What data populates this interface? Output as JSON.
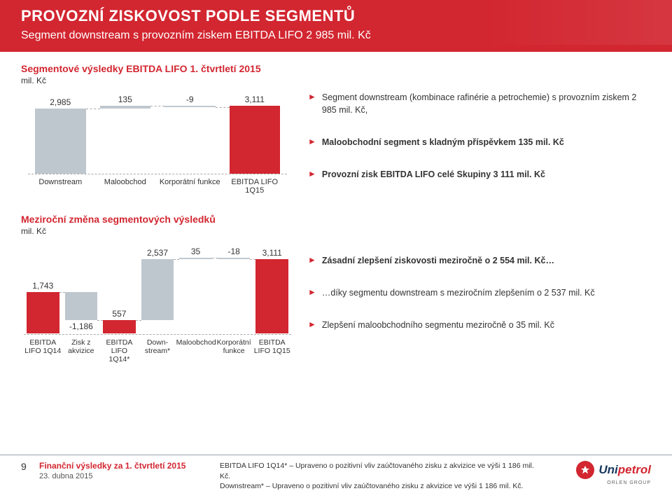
{
  "header": {
    "title": "PROVOZNÍ ZISKOVOST PODLE SEGMENTŮ",
    "subtitle": "Segment downstream s provozním ziskem EBITDA LIFO 2 985 mil. Kč"
  },
  "section1": {
    "title": "Segmentové výsledky EBITDA LIFO  1. čtvrtletí 2015",
    "unit": "mil. Kč",
    "chart": {
      "type": "waterfall",
      "categories": [
        "Downstream",
        "Maloobchod",
        "Korporátní funkce",
        "EBITDA LIFO 1Q15"
      ],
      "values": [
        2985,
        135,
        -9,
        3111
      ],
      "labels": [
        "2,985",
        "135",
        "-9",
        "3,111"
      ],
      "bar_colors": [
        "#bfc7ce",
        "#bfc7ce",
        "#bfc7ce",
        "#d22630"
      ],
      "bg": "#ffffff",
      "axis_color": "#aaaaaa",
      "label_fontsize": 12,
      "cat_fontsize": 11,
      "ylim": [
        0,
        3200
      ]
    },
    "bullets": [
      "Segment downstream (kombinace rafinérie a petrochemie) s provozním ziskem 2 985 mil. Kč,",
      "Maloobchodní segment s kladným příspěvkem 135 mil. Kč",
      "Provozní zisk EBITDA LIFO celé Skupiny 3 111 mil. Kč"
    ]
  },
  "section2": {
    "title": "Meziroční změna segmentových výsledků",
    "unit": "mil. Kč",
    "chart": {
      "type": "waterfall",
      "categories": [
        "EBITDA LIFO 1Q14",
        "Zisk z akvizice",
        "EBITDA LIFO 1Q14*",
        "Down-stream*",
        "Maloobchod",
        "Korporátní funkce",
        "EBITDA LIFO 1Q15"
      ],
      "values": [
        1743,
        -1186,
        557,
        2537,
        35,
        -18,
        3111
      ],
      "labels": [
        "1,743",
        "-1,186",
        "557",
        "2,537",
        "35",
        "-18",
        "3,111"
      ],
      "bar_colors": [
        "#d22630",
        "#bfc7ce",
        "#d22630",
        "#bfc7ce",
        "#bfc7ce",
        "#bfc7ce",
        "#d22630"
      ],
      "bg": "#ffffff",
      "axis_color": "#aaaaaa",
      "label_fontsize": 12,
      "cat_fontsize": 10.5,
      "ylim": [
        0,
        3200
      ]
    },
    "bullets": [
      "Zásadní zlepšení ziskovosti meziročně o 2 554 mil. Kč…",
      "…díky segmentu downstream  s meziročním zlepšením o 2 537 mil. Kč",
      "Zlepšení maloobchodního segmentu meziročně o 35 mil. Kč"
    ]
  },
  "footer": {
    "page": "9",
    "title": "Finanční výsledky za 1. čtvrtletí 2015",
    "date": "23. dubna 2015",
    "note1": "EBITDA LIFO 1Q14* – Upraveno o pozitivní vliv zaúčtovaného zisku z akvizice ve výši 1 186 mil. Kč.",
    "note2": "Downstream* – Upraveno o pozitivní vliv zaúčtovaného zisku z akvizice ve výši 1 186 mil. Kč.",
    "logo_uni": "Uni",
    "logo_pet": "petrol",
    "logo_group": "ORLEN GROUP"
  }
}
